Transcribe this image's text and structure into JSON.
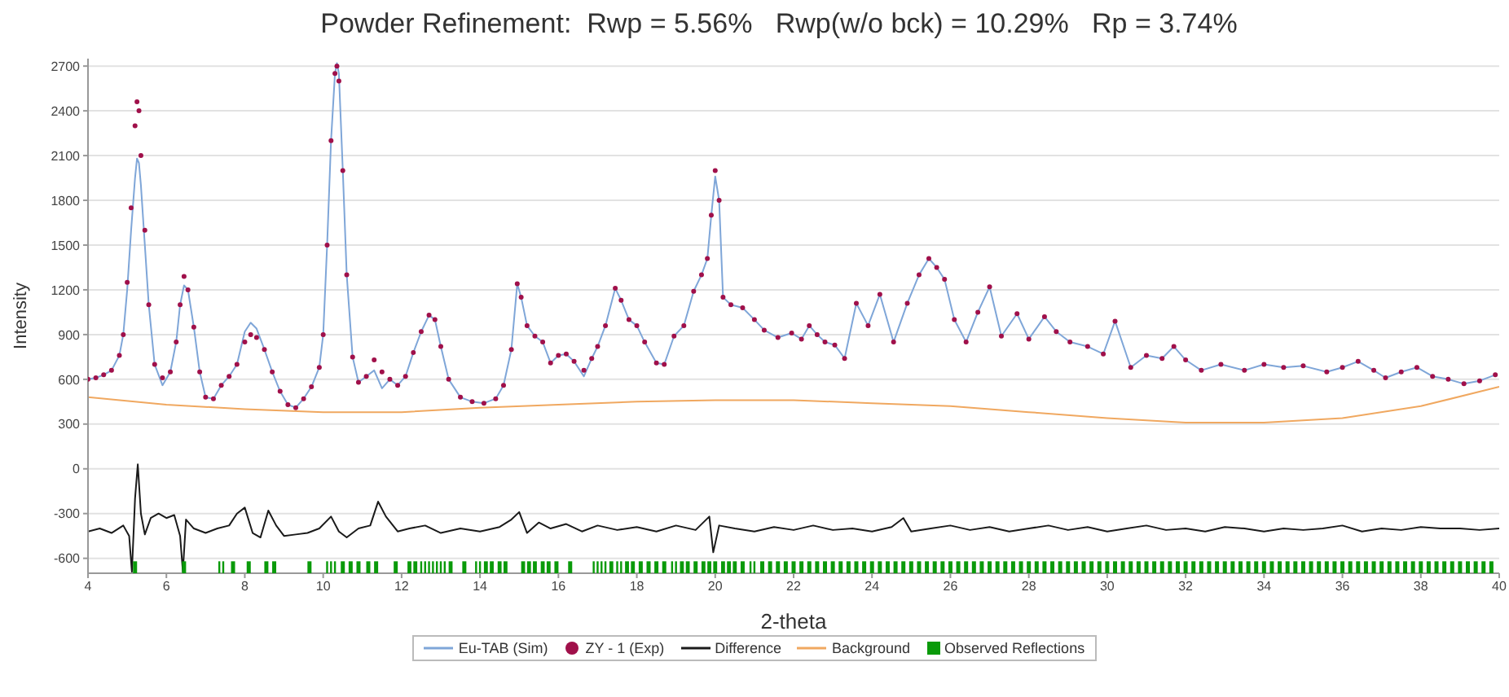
{
  "chart_data": {
    "type": "scatter",
    "title": "Powder Refinement:  Rwp = 5.56%   Rwp(w/o bck) = 10.29%   Rp = 3.74%",
    "xlabel": "2-theta",
    "ylabel": "Intensity",
    "xlim": [
      4,
      40
    ],
    "xticks": [
      4,
      6,
      8,
      10,
      12,
      14,
      16,
      18,
      20,
      22,
      24,
      26,
      28,
      30,
      32,
      34,
      36,
      38,
      40
    ],
    "ylim": [
      -700,
      2750
    ],
    "yticks": [
      -600,
      -300,
      0,
      300,
      600,
      900,
      1200,
      1500,
      1800,
      2100,
      2400,
      2700
    ],
    "grid": "y",
    "legend": "bottom",
    "x": [
      4.0,
      4.2,
      4.4,
      4.6,
      4.8,
      4.9,
      5.0,
      5.1,
      5.2,
      5.25,
      5.3,
      5.35,
      5.45,
      5.55,
      5.7,
      5.9,
      6.1,
      6.25,
      6.35,
      6.45,
      6.55,
      6.7,
      6.85,
      7.0,
      7.2,
      7.4,
      7.6,
      7.8,
      8.0,
      8.15,
      8.3,
      8.5,
      8.7,
      8.9,
      9.1,
      9.3,
      9.5,
      9.7,
      9.9,
      10.0,
      10.1,
      10.2,
      10.3,
      10.35,
      10.4,
      10.5,
      10.6,
      10.75,
      10.9,
      11.1,
      11.3,
      11.5,
      11.7,
      11.9,
      12.1,
      12.3,
      12.5,
      12.7,
      12.85,
      13.0,
      13.2,
      13.5,
      13.8,
      14.1,
      14.4,
      14.6,
      14.8,
      14.95,
      15.05,
      15.2,
      15.4,
      15.6,
      15.8,
      16.0,
      16.2,
      16.4,
      16.65,
      16.85,
      17.0,
      17.2,
      17.45,
      17.6,
      17.8,
      18.0,
      18.2,
      18.5,
      18.7,
      18.95,
      19.2,
      19.45,
      19.65,
      19.8,
      19.9,
      20.0,
      20.1,
      20.2,
      20.4,
      20.7,
      21.0,
      21.25,
      21.6,
      21.95,
      22.2,
      22.4,
      22.6,
      22.8,
      23.05,
      23.3,
      23.6,
      23.9,
      24.2,
      24.55,
      24.9,
      25.2,
      25.45,
      25.65,
      25.85,
      26.1,
      26.4,
      26.7,
      27.0,
      27.3,
      27.7,
      28.0,
      28.4,
      28.7,
      29.05,
      29.5,
      29.9,
      30.2,
      30.6,
      31.0,
      31.4,
      31.7,
      32.0,
      32.4,
      32.9,
      33.5,
      34.0,
      34.5,
      35.0,
      35.6,
      36.0,
      36.4,
      36.8,
      37.1,
      37.5,
      37.9,
      38.3,
      38.7,
      39.1,
      39.5,
      39.9
    ],
    "series": [
      {
        "name": "Eu-TAB (Sim)",
        "type": "line",
        "color": "#7fa6d8",
        "values": [
          600,
          610,
          630,
          660,
          760,
          900,
          1200,
          1600,
          1950,
          2080,
          2050,
          1900,
          1500,
          1100,
          700,
          560,
          650,
          850,
          1100,
          1230,
          1200,
          950,
          650,
          480,
          470,
          560,
          620,
          700,
          920,
          980,
          940,
          800,
          650,
          520,
          430,
          410,
          470,
          550,
          680,
          900,
          1500,
          2200,
          2650,
          2720,
          2650,
          2000,
          1300,
          750,
          580,
          620,
          660,
          540,
          600,
          560,
          620,
          780,
          920,
          1030,
          1000,
          820,
          600,
          480,
          450,
          440,
          470,
          560,
          800,
          1240,
          1150,
          960,
          890,
          850,
          710,
          760,
          770,
          720,
          620,
          740,
          820,
          960,
          1210,
          1130,
          1000,
          960,
          850,
          710,
          700,
          890,
          960,
          1190,
          1300,
          1410,
          1700,
          1960,
          1800,
          1150,
          1100,
          1080,
          1000,
          930,
          880,
          910,
          870,
          960,
          900,
          850,
          830,
          740,
          1110,
          960,
          1170,
          850,
          1110,
          1300,
          1410,
          1350,
          1270,
          1000,
          850,
          1050,
          1220,
          890,
          1040,
          870,
          1020,
          920,
          850,
          820,
          770,
          990,
          680,
          760,
          740,
          820,
          730,
          660,
          700,
          660,
          700,
          680,
          690,
          650,
          680,
          720,
          660,
          610,
          650,
          680,
          620,
          600,
          570,
          590,
          630
        ]
      },
      {
        "name": "ZY - 1 (Exp)",
        "color": "#a0104a",
        "marker": "circle",
        "values": [
          600,
          610,
          630,
          660,
          760,
          900,
          1250,
          1750,
          2300,
          2460,
          2400,
          2100,
          1600,
          1100,
          700,
          610,
          650,
          850,
          1100,
          1290,
          1200,
          950,
          650,
          480,
          470,
          560,
          620,
          700,
          850,
          900,
          880,
          800,
          650,
          520,
          430,
          410,
          470,
          550,
          680,
          900,
          1500,
          2200,
          2650,
          2700,
          2600,
          2000,
          1300,
          750,
          580,
          620,
          730,
          650,
          600,
          560,
          620,
          780,
          920,
          1030,
          1000,
          820,
          600,
          480,
          450,
          440,
          470,
          560,
          800,
          1240,
          1150,
          960,
          890,
          850,
          710,
          760,
          770,
          720,
          660,
          740,
          820,
          960,
          1210,
          1130,
          1000,
          960,
          850,
          710,
          700,
          890,
          960,
          1190,
          1300,
          1410,
          1700,
          2000,
          1800,
          1150,
          1100,
          1080,
          1000,
          930,
          880,
          910,
          870,
          960,
          900,
          850,
          830,
          740,
          1110,
          960,
          1170,
          850,
          1110,
          1300,
          1410,
          1350,
          1270,
          1000,
          850,
          1050,
          1220,
          890,
          1040,
          870,
          1020,
          920,
          850,
          820,
          770,
          990,
          680,
          760,
          740,
          820,
          730,
          660,
          700,
          660,
          700,
          680,
          690,
          650,
          680,
          720,
          660,
          610,
          650,
          680,
          620,
          600,
          570,
          590,
          630
        ]
      },
      {
        "name": "Difference",
        "type": "line",
        "color": "#1a1a1a",
        "x": [
          4.0,
          4.3,
          4.6,
          4.9,
          5.05,
          5.12,
          5.2,
          5.27,
          5.35,
          5.45,
          5.6,
          5.8,
          6.0,
          6.2,
          6.35,
          6.42,
          6.5,
          6.7,
          7.0,
          7.3,
          7.6,
          7.8,
          8.0,
          8.2,
          8.4,
          8.6,
          8.8,
          9.0,
          9.3,
          9.6,
          9.9,
          10.2,
          10.4,
          10.6,
          10.9,
          11.2,
          11.4,
          11.6,
          11.9,
          12.2,
          12.6,
          13.0,
          13.5,
          14.0,
          14.5,
          14.8,
          15.0,
          15.2,
          15.5,
          15.8,
          16.2,
          16.6,
          17.0,
          17.5,
          18.0,
          18.5,
          19.0,
          19.5,
          19.85,
          19.95,
          20.1,
          20.5,
          21.0,
          21.5,
          22.0,
          22.5,
          23.0,
          23.5,
          24.0,
          24.5,
          24.8,
          25.0,
          25.5,
          26.0,
          26.5,
          27.0,
          27.5,
          28.0,
          28.5,
          29.0,
          29.5,
          30.0,
          30.5,
          31.0,
          31.5,
          32.0,
          32.5,
          33.0,
          33.5,
          34.0,
          34.5,
          35.0,
          35.5,
          36.0,
          36.5,
          37.0,
          37.5,
          38.0,
          38.5,
          39.0,
          39.5,
          40.0
        ],
        "values": [
          -420,
          -400,
          -430,
          -380,
          -450,
          -690,
          -200,
          30,
          -300,
          -440,
          -330,
          -300,
          -330,
          -310,
          -450,
          -690,
          -340,
          -400,
          -430,
          -400,
          -380,
          -300,
          -260,
          -430,
          -460,
          -280,
          -380,
          -450,
          -440,
          -430,
          -400,
          -320,
          -420,
          -460,
          -400,
          -380,
          -220,
          -320,
          -420,
          -400,
          -380,
          -430,
          -400,
          -420,
          -390,
          -340,
          -290,
          -430,
          -360,
          -400,
          -370,
          -420,
          -380,
          -410,
          -390,
          -420,
          -380,
          -410,
          -320,
          -560,
          -380,
          -400,
          -420,
          -390,
          -410,
          -380,
          -410,
          -400,
          -420,
          -390,
          -330,
          -420,
          -400,
          -380,
          -410,
          -390,
          -420,
          -400,
          -380,
          -410,
          -390,
          -420,
          -400,
          -380,
          -410,
          -400,
          -420,
          -390,
          -400,
          -420,
          -400,
          -410,
          -400,
          -380,
          -420,
          -400,
          -410,
          -390,
          -400,
          -400,
          -410,
          -400
        ]
      },
      {
        "name": "Background",
        "type": "line",
        "color": "#f0a860",
        "x": [
          4,
          6,
          8,
          10,
          12,
          14,
          16,
          18,
          20,
          22,
          24,
          26,
          28,
          30,
          32,
          34,
          36,
          38,
          40
        ],
        "values": [
          480,
          430,
          400,
          380,
          380,
          410,
          430,
          450,
          460,
          460,
          440,
          420,
          380,
          340,
          310,
          310,
          340,
          420,
          550
        ]
      },
      {
        "name": "Observed Reflections",
        "type": "bar",
        "color": "#0a9a0a",
        "x": [
          5.2,
          6.45,
          7.35,
          7.45,
          7.7,
          8.1,
          8.55,
          8.75,
          9.65,
          10.1,
          10.2,
          10.3,
          10.5,
          10.7,
          10.9,
          11.15,
          11.35,
          11.85,
          12.2,
          12.35,
          12.5,
          12.6,
          12.7,
          12.8,
          12.9,
          13.0,
          13.1,
          13.25,
          13.6,
          13.9,
          14.0,
          14.15,
          14.3,
          14.5,
          14.65,
          15.1,
          15.25,
          15.4,
          15.6,
          15.75,
          15.95,
          16.3,
          16.9,
          17.0,
          17.1,
          17.2,
          17.35,
          17.5,
          17.6,
          17.75,
          17.9,
          18.1,
          18.3,
          18.5,
          18.7,
          18.9,
          19.0,
          19.15,
          19.3,
          19.5,
          19.7,
          19.85,
          20.0,
          20.2,
          20.35,
          20.5,
          20.7,
          20.9,
          21.0,
          21.2,
          21.4,
          21.6,
          21.8,
          22.0,
          22.2,
          22.4,
          22.6,
          22.8,
          23.0,
          23.2,
          23.4,
          23.6,
          23.8,
          24.0,
          24.2,
          24.4,
          24.6,
          24.8,
          25.0,
          25.2,
          25.4,
          25.6,
          25.8,
          26.0,
          26.2,
          26.4,
          26.6,
          26.8,
          27.0,
          27.2,
          27.4,
          27.6,
          27.8,
          28.0,
          28.2,
          28.4,
          28.6,
          28.8,
          29.0,
          29.2,
          29.4,
          29.6,
          29.8,
          30.0,
          30.2,
          30.4,
          30.6,
          30.8,
          31.0,
          31.2,
          31.4,
          31.6,
          31.8,
          32.0,
          32.2,
          32.4,
          32.6,
          32.8,
          33.0,
          33.2,
          33.4,
          33.6,
          33.8,
          34.0,
          34.2,
          34.4,
          34.6,
          34.8,
          35.0,
          35.2,
          35.4,
          35.6,
          35.8,
          36.0,
          36.2,
          36.4,
          36.6,
          36.8,
          37.0,
          37.2,
          37.4,
          37.6,
          37.8,
          38.0,
          38.2,
          38.4,
          38.6,
          38.8,
          39.0,
          39.2,
          39.4,
          39.6,
          39.8
        ],
        "values": [
          80,
          80,
          80,
          80,
          80,
          80,
          80,
          80,
          80,
          80,
          80,
          80,
          80,
          80,
          80,
          80,
          80,
          80,
          80,
          80,
          80,
          80,
          80,
          80,
          80,
          80,
          80,
          80,
          80,
          80,
          80,
          80,
          80,
          80,
          80,
          80,
          80,
          80,
          80,
          80,
          80,
          80,
          80,
          80,
          80,
          80,
          80,
          80,
          80,
          80,
          80,
          80,
          80,
          80,
          80,
          80,
          80,
          80,
          80,
          80,
          80,
          80,
          80,
          80,
          80,
          80,
          80,
          80,
          80,
          80,
          80,
          80,
          80,
          80,
          80,
          80,
          80,
          80,
          80,
          80,
          80,
          80,
          80,
          80,
          80,
          80,
          80,
          80,
          80,
          80,
          80,
          80,
          80,
          80,
          80,
          80,
          80,
          80,
          80,
          80,
          80,
          80,
          80,
          80,
          80,
          80,
          80,
          80,
          80,
          80,
          80,
          80,
          80,
          80,
          80,
          80,
          80,
          80,
          80,
          80,
          80,
          80,
          80,
          80,
          80,
          80,
          80,
          80,
          80,
          80,
          80,
          80,
          80,
          80,
          80,
          80,
          80,
          80,
          80,
          80,
          80,
          80,
          80,
          80,
          80,
          80,
          80,
          80,
          80,
          80,
          80,
          80,
          80,
          80,
          80,
          80,
          80,
          80,
          80,
          80,
          80,
          80,
          80
        ],
        "base": [
          -700,
          -700,
          -700,
          -700,
          -700,
          -700,
          -700,
          -700,
          -700,
          -700,
          -700,
          -700,
          -700,
          -700,
          -700,
          -700,
          -700,
          -700,
          -700,
          -700,
          -700,
          -700,
          -700,
          -700,
          -700,
          -700,
          -700,
          -700,
          -700,
          -700,
          -700,
          -700,
          -700,
          -700,
          -700,
          -700,
          -700,
          -700,
          -700,
          -700,
          -700,
          -700,
          -700,
          -700,
          -700,
          -700,
          -700,
          -700,
          -700,
          -700,
          -700,
          -700,
          -700,
          -700,
          -700,
          -700,
          -700,
          -700,
          -700,
          -700,
          -700,
          -700,
          -700,
          -700,
          -700,
          -700,
          -700,
          -700,
          -700,
          -700,
          -700,
          -700,
          -700,
          -700,
          -700,
          -700,
          -700,
          -700,
          -700,
          -700,
          -700,
          -700,
          -700,
          -700,
          -700,
          -700,
          -700,
          -700,
          -700,
          -700,
          -700,
          -700,
          -700,
          -700,
          -700,
          -700,
          -700,
          -700,
          -700,
          -700,
          -700,
          -700,
          -700,
          -700,
          -700,
          -700,
          -700,
          -700,
          -700,
          -700,
          -700,
          -700,
          -700,
          -700,
          -700,
          -700,
          -700,
          -700,
          -700,
          -700,
          -700,
          -700,
          -700,
          -700,
          -700,
          -700,
          -700,
          -700,
          -700,
          -700,
          -700,
          -700,
          -700,
          -700,
          -700,
          -700,
          -700,
          -700,
          -700,
          -700,
          -700,
          -700,
          -700,
          -700,
          -700,
          -700,
          -700,
          -700,
          -700,
          -700,
          -700,
          -700,
          -700,
          -700,
          -700,
          -700,
          -700,
          -700,
          -700,
          -700,
          -700,
          -700,
          -700
        ]
      }
    ]
  }
}
